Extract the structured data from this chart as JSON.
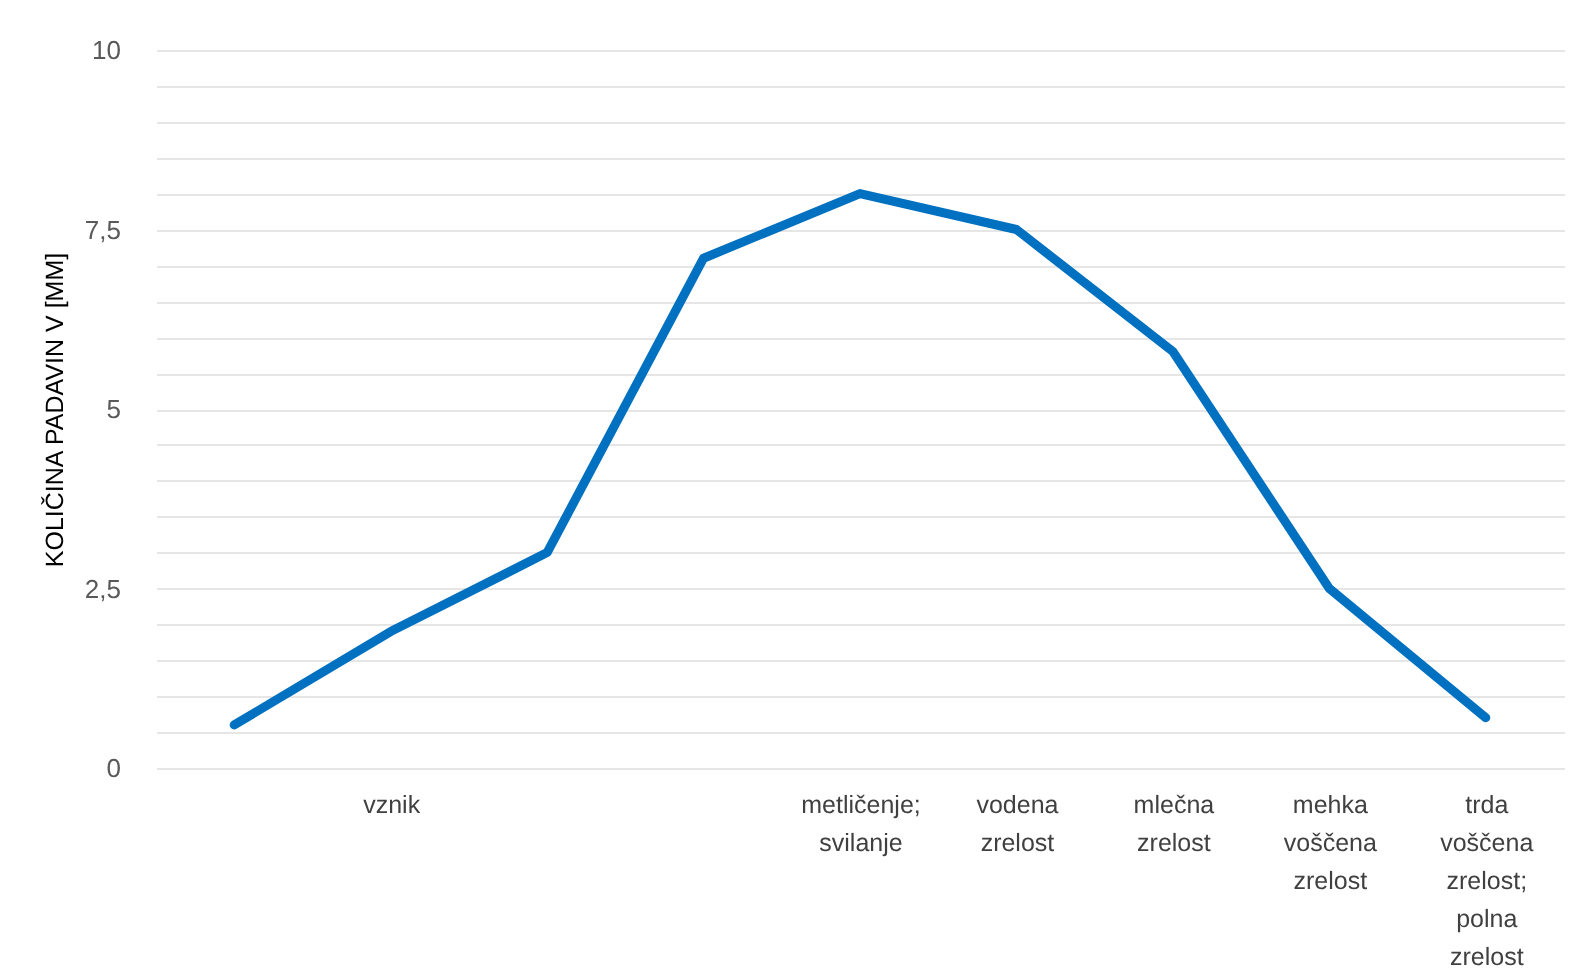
{
  "chart_data": {
    "type": "line",
    "ylabel": "KOLIČINA PADAVIN V [MM]",
    "categories": [
      null,
      "vznik",
      null,
      null,
      "metličenje; svilanje",
      "vodena zrelost",
      "mlečna zrelost",
      "mehka voščena zrelost",
      "trda voščena zrelost; polna zrelost"
    ],
    "series": [
      {
        "color": "#0070c0",
        "values": [
          0.6,
          1.9,
          3.0,
          7.1,
          8.0,
          7.5,
          5.8,
          2.5,
          0.7
        ]
      }
    ],
    "ylim": [
      0,
      10
    ],
    "yticks": [
      0,
      {
        "value": 0.5,
        "label": null
      },
      {
        "value": 1,
        "label": null
      },
      {
        "value": 1.5,
        "label": null
      },
      {
        "value": 2,
        "label": null
      },
      {
        "value": 2.5,
        "label": "2,5"
      },
      {
        "value": 3,
        "label": null
      },
      {
        "value": 3.5,
        "label": null
      },
      {
        "value": 4,
        "label": null
      },
      {
        "value": 4.5,
        "label": null
      },
      5,
      {
        "value": 5.5,
        "label": null
      },
      {
        "value": 6,
        "label": null
      },
      {
        "value": 6.5,
        "label": null
      },
      {
        "value": 7,
        "label": null
      },
      {
        "value": 7.5,
        "label": "7,5"
      },
      {
        "value": 8,
        "label": null
      },
      {
        "value": 8.5,
        "label": null
      },
      {
        "value": 9,
        "label": null
      },
      {
        "value": 9.5,
        "label": null
      },
      10
    ],
    "grid": "y",
    "line_style": "solid"
  }
}
